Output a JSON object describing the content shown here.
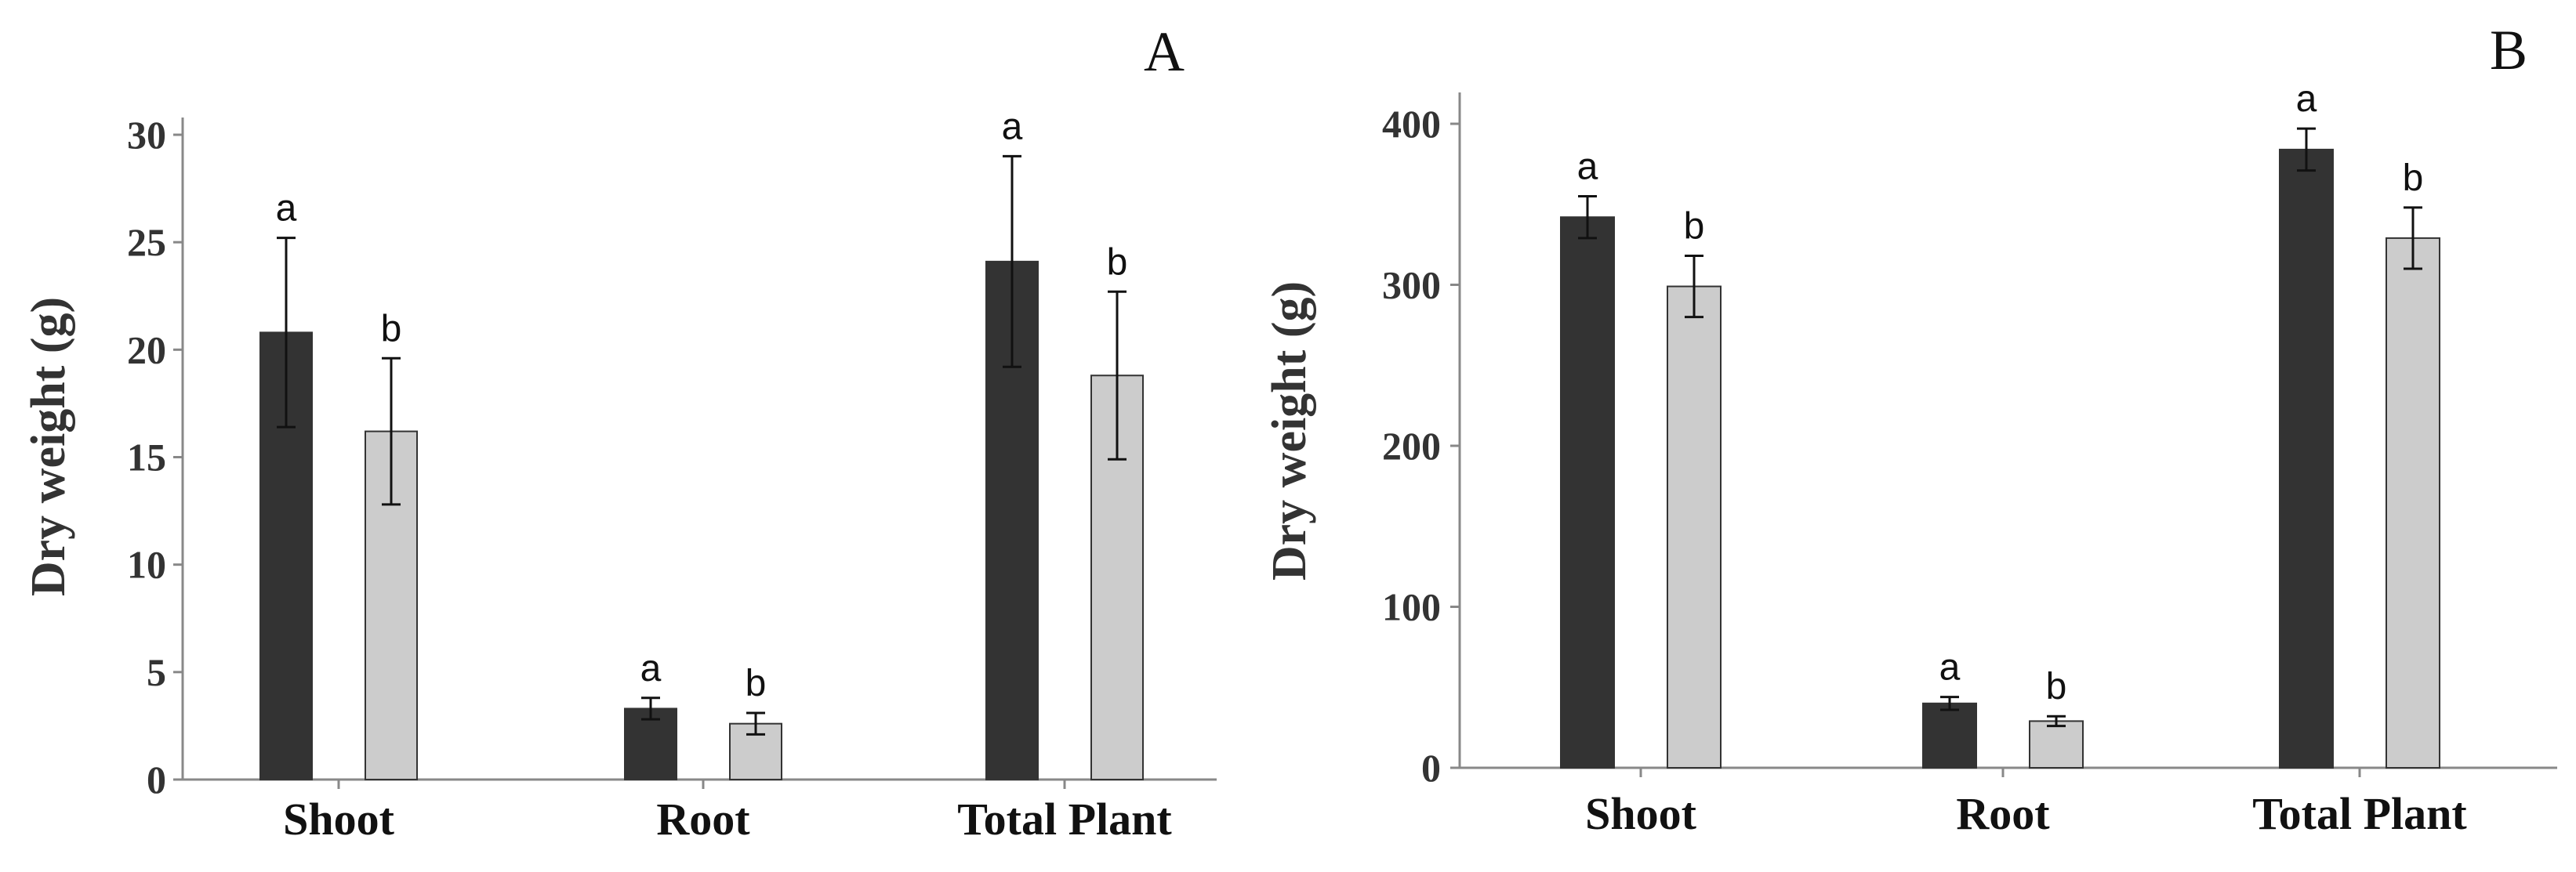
{
  "chart_data": [
    {
      "type": "bar",
      "panel_label": "A",
      "ylabel": "Dry weight (g)",
      "xlabel": "",
      "categories": [
        "Shoot",
        "Root",
        "Total Plant"
      ],
      "ylim": [
        0,
        30
      ],
      "yticks": [
        0,
        5,
        10,
        15,
        20,
        25,
        30
      ],
      "grid": false,
      "series": [
        {
          "color": "#333333",
          "values": [
            20.8,
            3.3,
            24.1
          ],
          "error": [
            4.4,
            0.5,
            4.9
          ],
          "letters": [
            "a",
            "a",
            "a"
          ]
        },
        {
          "color": "#cccccc",
          "values": [
            16.2,
            2.6,
            18.8
          ],
          "error": [
            3.4,
            0.5,
            3.9
          ],
          "letters": [
            "b",
            "b",
            "b"
          ]
        }
      ]
    },
    {
      "type": "bar",
      "panel_label": "B",
      "ylabel": "Dry weight (g)",
      "xlabel": "",
      "categories": [
        "Shoot",
        "Root",
        "Total Plant"
      ],
      "ylim": [
        0,
        400
      ],
      "yticks": [
        0,
        100,
        200,
        300,
        400
      ],
      "grid": false,
      "series": [
        {
          "color": "#333333",
          "values": [
            342,
            40,
            384
          ],
          "error": [
            13,
            4,
            13
          ],
          "letters": [
            "a",
            "a",
            "a"
          ]
        },
        {
          "color": "#cccccc",
          "values": [
            299,
            29,
            329
          ],
          "error": [
            19,
            3,
            19
          ],
          "letters": [
            "b",
            "b",
            "b"
          ]
        }
      ]
    }
  ]
}
